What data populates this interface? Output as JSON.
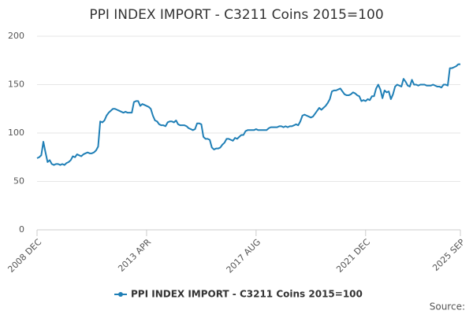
{
  "chart_data": {
    "type": "line",
    "title": "PPI INDEX IMPORT - C3211 Coins 2015=100",
    "source": "Source:",
    "categories": [
      "2008 DEC",
      null,
      null,
      null,
      null,
      null,
      null,
      null,
      null,
      null,
      null,
      null,
      null,
      null,
      null,
      null,
      null,
      null,
      null,
      null,
      null,
      null,
      null,
      null,
      null,
      null,
      null,
      null,
      null,
      null,
      null,
      null,
      null,
      null,
      null,
      null,
      null,
      null,
      null,
      null,
      null,
      null,
      null,
      null,
      null,
      null,
      null,
      null,
      null,
      null,
      null,
      null,
      "2013 APR",
      null,
      null,
      null,
      null,
      null,
      null,
      null,
      null,
      null,
      null,
      null,
      null,
      null,
      null,
      null,
      null,
      null,
      null,
      null,
      null,
      null,
      null,
      null,
      null,
      null,
      null,
      null,
      null,
      null,
      null,
      null,
      null,
      null,
      null,
      null,
      null,
      null,
      null,
      null,
      null,
      null,
      null,
      null,
      null,
      null,
      null,
      null,
      null,
      null,
      null,
      null,
      "2017 AUG",
      null,
      null,
      null,
      null,
      null,
      null,
      null,
      null,
      null,
      null,
      null,
      null,
      null,
      null,
      null,
      null,
      null,
      null,
      null,
      null,
      null,
      null,
      null,
      null,
      null,
      null,
      null,
      null,
      null,
      null,
      null,
      null,
      null,
      null,
      null,
      null,
      null,
      null,
      null,
      null,
      null,
      null,
      null,
      null,
      null,
      null,
      null,
      null,
      null,
      null,
      null,
      "2021 DEC",
      null,
      null,
      null,
      null,
      null,
      null,
      null,
      null,
      null,
      null,
      null,
      null,
      null,
      null,
      null,
      null,
      null,
      null,
      null,
      null,
      null,
      null,
      null,
      null,
      null,
      null,
      null,
      null,
      null,
      null,
      null,
      null,
      null,
      null,
      null,
      null,
      null,
      null,
      null,
      null,
      null,
      null,
      null,
      null,
      "2025 SEP"
    ],
    "series": [
      {
        "name": "PPI INDEX IMPORT - C3211 Coins 2015=100",
        "color": "#1f7fb6",
        "values": [
          74,
          75,
          77,
          91,
          80,
          70,
          72,
          68,
          67,
          68,
          68,
          67,
          68,
          67,
          69,
          70,
          72,
          76,
          75,
          78,
          77,
          76,
          78,
          79,
          80,
          79,
          79,
          80,
          82,
          86,
          112,
          111,
          113,
          118,
          121,
          123,
          125,
          125,
          124,
          123,
          122,
          121,
          122,
          121,
          121,
          121,
          132,
          133,
          133,
          128,
          130,
          129,
          128,
          127,
          125,
          118,
          113,
          112,
          109,
          108,
          108,
          107,
          111,
          112,
          112,
          111,
          113,
          109,
          108,
          108,
          108,
          107,
          105,
          104,
          103,
          104,
          110,
          110,
          109,
          96,
          94,
          94,
          93,
          85,
          83,
          84,
          84,
          85,
          88,
          90,
          94,
          94,
          93,
          92,
          95,
          94,
          96,
          98,
          98,
          102,
          103,
          103,
          103,
          103,
          104,
          103,
          103,
          103,
          103,
          103,
          105,
          106,
          106,
          106,
          106,
          107,
          107,
          106,
          107,
          106,
          107,
          107,
          108,
          109,
          108,
          112,
          118,
          119,
          118,
          117,
          116,
          117,
          120,
          123,
          126,
          124,
          126,
          128,
          131,
          135,
          143,
          144,
          144,
          145,
          146,
          143,
          140,
          139,
          139,
          140,
          142,
          141,
          139,
          138,
          133,
          134,
          133,
          135,
          134,
          138,
          138,
          146,
          150,
          145,
          136,
          144,
          142,
          143,
          135,
          140,
          148,
          150,
          149,
          148,
          156,
          153,
          149,
          148,
          155,
          150,
          150,
          149,
          150,
          150,
          150,
          149,
          149,
          149,
          150,
          149,
          148,
          148,
          147,
          150,
          150,
          149,
          167,
          167,
          168,
          169,
          171,
          171
        ]
      }
    ],
    "ylim": [
      0,
      200
    ],
    "yticks": [
      0,
      50,
      100,
      150,
      200
    ],
    "grid": true
  }
}
